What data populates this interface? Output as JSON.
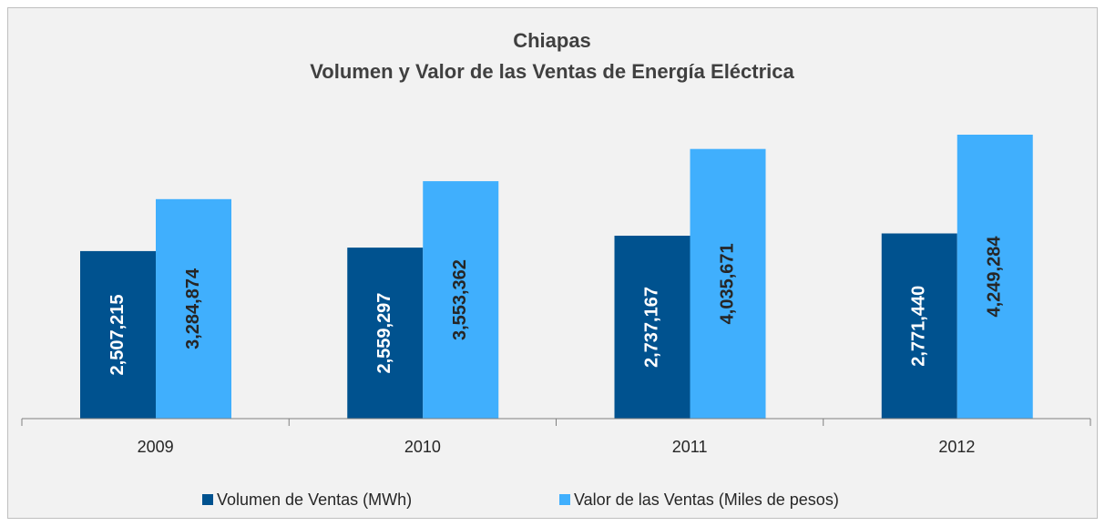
{
  "chart_data": {
    "type": "bar",
    "title": "Chiapas",
    "subtitle": "Volumen y Valor de las Ventas de Energía Eléctrica",
    "categories": [
      "2009",
      "2010",
      "2011",
      "2012"
    ],
    "series": [
      {
        "name": "Volumen de Ventas (MWh)",
        "color": "#00528f",
        "values": [
          2507215,
          2559297,
          2737167,
          2771440
        ],
        "value_labels": [
          "2,507,215",
          "2,559,297",
          "2,737,167",
          "2,771,440"
        ]
      },
      {
        "name": "Valor de las Ventas (Miles de pesos)",
        "color": "#40affd",
        "values": [
          3284874,
          3553362,
          4035671,
          4249284
        ],
        "value_labels": [
          "3,284,874",
          "3,553,362",
          "4,035,671",
          "4,249,284"
        ]
      }
    ],
    "legend": "bottom"
  }
}
